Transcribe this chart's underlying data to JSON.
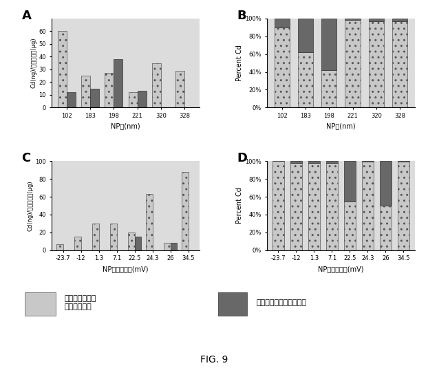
{
  "panel_A": {
    "label": "A",
    "categories": [
      "102",
      "183",
      "198",
      "221",
      "320",
      "328"
    ],
    "xlabel": "NP径(nm)",
    "ylabel": "Cd(ng)/タンパク質(μg)",
    "ylim": [
      0,
      70
    ],
    "yticks": [
      0,
      10,
      20,
      30,
      40,
      50,
      60
    ],
    "mito": [
      60,
      25,
      27,
      12,
      35,
      29
    ],
    "cyto": [
      12,
      15,
      38,
      13,
      0,
      0
    ]
  },
  "panel_B": {
    "label": "B",
    "categories": [
      "102",
      "183",
      "198",
      "221",
      "320",
      "328"
    ],
    "xlabel": "NP径(nm)",
    "ylabel": "Percent Cd",
    "ytick_labels": [
      "0%",
      "20%",
      "40%",
      "60%",
      "80%",
      "100%"
    ],
    "mito_pct": [
      0.9,
      0.62,
      0.42,
      0.98,
      0.97,
      0.97
    ],
    "cyto_pct": [
      0.1,
      0.38,
      0.58,
      0.02,
      0.03,
      0.03
    ]
  },
  "panel_C": {
    "label": "C",
    "categories": [
      "-23.7",
      "-12",
      "1.3",
      "7.1",
      "22.5",
      "24.3",
      "26",
      "34.5"
    ],
    "xlabel": "NPゼータ電位(mV)",
    "ylabel": "Cd(ng)/タンパク質(μg)",
    "ylim": [
      0,
      100
    ],
    "yticks": [
      0,
      20,
      40,
      60,
      80,
      100
    ],
    "mito": [
      7,
      15,
      30,
      30,
      20,
      63,
      8,
      88
    ],
    "cyto": [
      0,
      0,
      0,
      0,
      15,
      0,
      8,
      0
    ]
  },
  "panel_D": {
    "label": "D",
    "categories": [
      "-23.7",
      "-12",
      "1.3",
      "7.1",
      "22.5",
      "24.3",
      "26",
      "34.5"
    ],
    "xlabel": "NPゼータ電位(mV)",
    "ylabel": "Percent Cd",
    "ytick_labels": [
      "0%",
      "20%",
      "40%",
      "60%",
      "80%",
      "100%"
    ],
    "mito_pct": [
      1.0,
      0.98,
      0.98,
      0.98,
      0.55,
      0.99,
      0.5,
      0.99
    ],
    "cyto_pct": [
      0.0,
      0.02,
      0.02,
      0.02,
      0.45,
      0.01,
      0.5,
      0.01
    ]
  },
  "legend_mito_label": "ミトコンドリア\nフラクション",
  "legend_cyto_label": "サイトゾルフラクション",
  "fig_title": "FIG. 9",
  "mito_color": "#c8c8c8",
  "cyto_color": "#686868",
  "bg_color": "#dcdcdc",
  "mito_hatch": "..",
  "cyto_hatch": ""
}
